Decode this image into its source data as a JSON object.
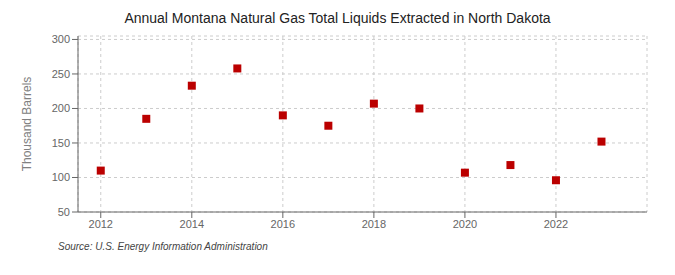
{
  "chart_data": {
    "type": "scatter",
    "title": "Annual Montana Natural Gas Total Liquids Extracted in North Dakota",
    "y_label": "Thousand Barrels",
    "source": "Source: U.S. Energy Information Administration",
    "x": [
      2012,
      2013,
      2014,
      2015,
      2016,
      2017,
      2018,
      2019,
      2020,
      2021,
      2022,
      2023
    ],
    "values": [
      110,
      185,
      233,
      258,
      190,
      175,
      207,
      200,
      107,
      118,
      96,
      152
    ],
    "xlim": [
      2011.5,
      2024.0
    ],
    "ylim": [
      50,
      305
    ],
    "xticks": [
      2012,
      2014,
      2016,
      2018,
      2020,
      2022
    ],
    "yticks": [
      50,
      100,
      150,
      200,
      250,
      300
    ],
    "color": "#bb0000",
    "marker": "square",
    "grid": true
  }
}
